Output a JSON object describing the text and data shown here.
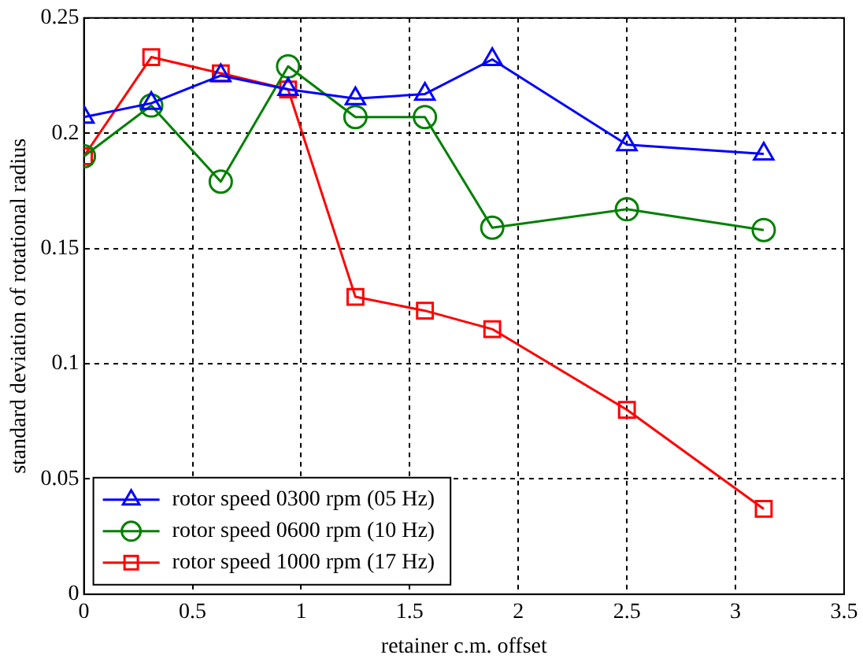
{
  "chart_data": {
    "type": "line",
    "xlabel": "retainer c.m. offset",
    "ylabel": "standard deviation of rotational radius",
    "x": [
      0,
      0.31,
      0.63,
      0.94,
      1.25,
      1.57,
      1.88,
      2.5,
      3.13
    ],
    "series": [
      {
        "name": "rotor speed 0300 rpm (05 Hz)",
        "color": "#0000ff",
        "marker": "triangle",
        "values": [
          0.207,
          0.213,
          0.225,
          0.219,
          0.215,
          0.217,
          0.232,
          0.195,
          0.191
        ]
      },
      {
        "name": "rotor speed 0600 rpm (10 Hz)",
        "color": "#008000",
        "marker": "circle",
        "values": [
          0.19,
          0.212,
          0.179,
          0.229,
          0.207,
          0.207,
          0.159,
          0.167,
          0.158
        ]
      },
      {
        "name": "rotor speed 1000 rpm (17 Hz)",
        "color": "#ff0000",
        "marker": "square",
        "values": [
          0.19,
          0.233,
          0.226,
          0.219,
          0.129,
          0.123,
          0.115,
          0.08,
          0.037
        ]
      }
    ],
    "xlim": [
      0,
      3.5
    ],
    "xticks": [
      0,
      0.5,
      1,
      1.5,
      2,
      2.5,
      3,
      3.5
    ],
    "ylim": [
      0,
      0.25
    ],
    "yticks": [
      0,
      0.05,
      0.1,
      0.15,
      0.2,
      0.25
    ],
    "grid": true,
    "legend": "bottom left",
    "line_style": "solid"
  }
}
